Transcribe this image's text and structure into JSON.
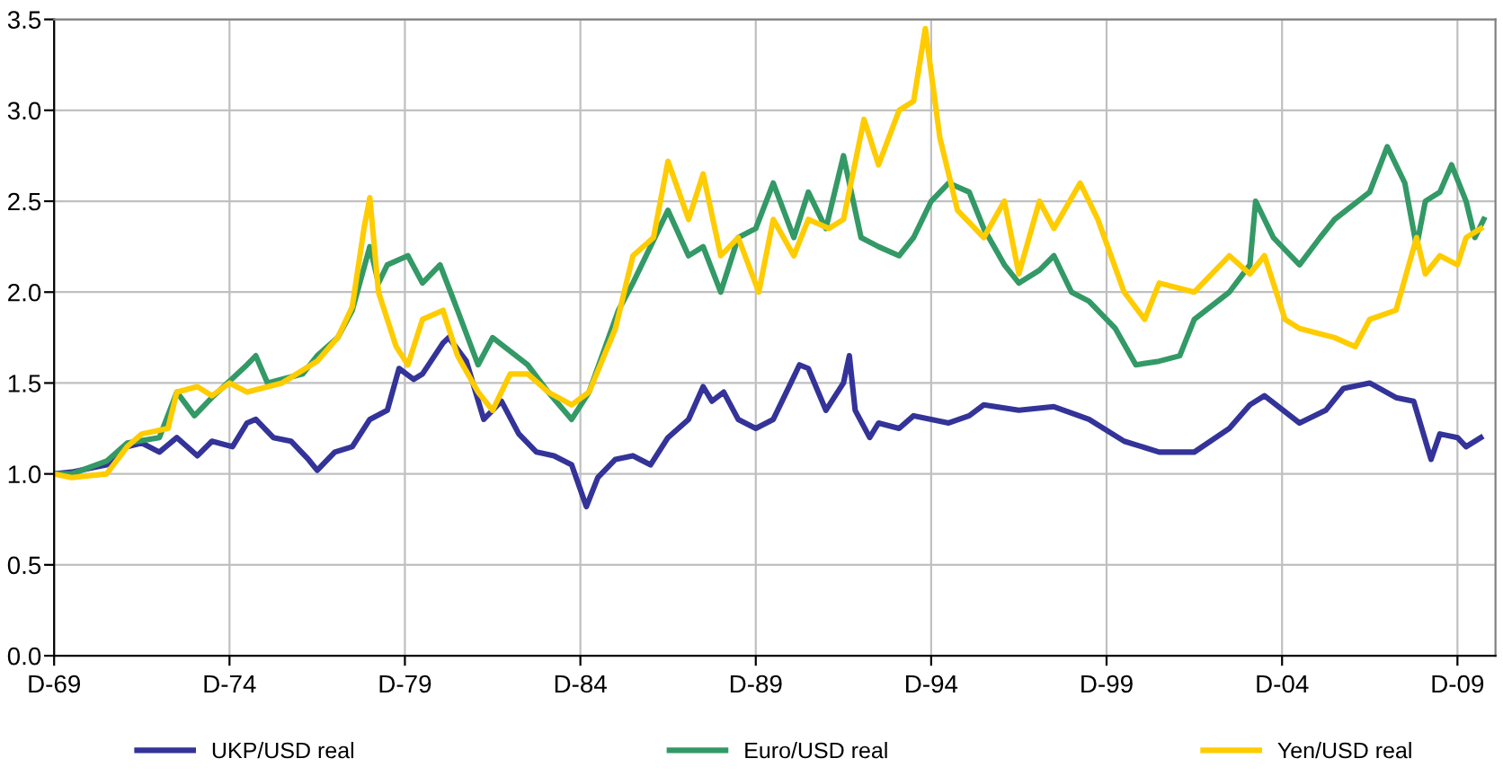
{
  "chart_data": {
    "type": "line",
    "xlim": [
      "1969-12",
      "2011-01"
    ],
    "ylim": [
      0,
      3.5
    ],
    "xticks": [
      {
        "value": "1969-12",
        "label": "D-69"
      },
      {
        "value": "1974-12",
        "label": "D-74"
      },
      {
        "value": "1979-12",
        "label": "D-79"
      },
      {
        "value": "1984-12",
        "label": "D-84"
      },
      {
        "value": "1989-12",
        "label": "D-89"
      },
      {
        "value": "1994-12",
        "label": "D-94"
      },
      {
        "value": "1999-12",
        "label": "D-99"
      },
      {
        "value": "2004-12",
        "label": "D-04"
      },
      {
        "value": "2009-12",
        "label": "D-09"
      }
    ],
    "yticks": [
      {
        "value": 0,
        "label": "0.0"
      },
      {
        "value": 0.5,
        "label": "0.5"
      },
      {
        "value": 1,
        "label": "1.0"
      },
      {
        "value": 1.5,
        "label": "1.5"
      },
      {
        "value": 2,
        "label": "2.0"
      },
      {
        "value": 2.5,
        "label": "2.5"
      },
      {
        "value": 3,
        "label": "3.0"
      },
      {
        "value": 3.5,
        "label": "3.5"
      }
    ],
    "grid": true,
    "legend": "bottom",
    "marker": "none",
    "line_style": "solid",
    "series": [
      {
        "name": "UKP/USD real",
        "color": "#333399",
        "x": [
          "1969-12",
          "1970-06",
          "1971-06",
          "1972-01",
          "1972-06",
          "1972-12",
          "1973-06",
          "1974-01",
          "1974-06",
          "1975-01",
          "1975-06",
          "1975-09",
          "1976-03",
          "1976-09",
          "1977-03",
          "1977-06",
          "1977-12",
          "1978-06",
          "1978-12",
          "1979-06",
          "1979-10",
          "1980-03",
          "1980-06",
          "1981-01",
          "1981-03",
          "1981-09",
          "1982-03",
          "1982-09",
          "1983-03",
          "1983-09",
          "1984-03",
          "1984-09",
          "1985-02",
          "1985-06",
          "1985-12",
          "1986-06",
          "1986-12",
          "1987-06",
          "1988-01",
          "1988-06",
          "1988-09",
          "1989-01",
          "1989-06",
          "1989-12",
          "1990-06",
          "1990-12",
          "1991-03",
          "1991-06",
          "1991-12",
          "1992-06",
          "1992-08",
          "1992-10",
          "1993-03",
          "1993-06",
          "1994-01",
          "1994-06",
          "1995-06",
          "1996-01",
          "1996-06",
          "1997-06",
          "1998-06",
          "1999-06",
          "2000-06",
          "2001-06",
          "2002-06",
          "2003-06",
          "2004-01",
          "2004-06",
          "2005-06",
          "2006-03",
          "2006-09",
          "2007-06",
          "2008-03",
          "2008-09",
          "2009-03",
          "2009-06",
          "2009-12",
          "2010-03",
          "2010-08"
        ],
        "values": [
          1.0,
          1.01,
          1.05,
          1.15,
          1.17,
          1.12,
          1.2,
          1.1,
          1.18,
          1.15,
          1.28,
          1.3,
          1.2,
          1.18,
          1.08,
          1.02,
          1.12,
          1.15,
          1.3,
          1.35,
          1.58,
          1.52,
          1.55,
          1.72,
          1.75,
          1.62,
          1.3,
          1.4,
          1.22,
          1.12,
          1.1,
          1.05,
          0.82,
          0.98,
          1.08,
          1.1,
          1.05,
          1.2,
          1.3,
          1.48,
          1.4,
          1.45,
          1.3,
          1.25,
          1.3,
          1.5,
          1.6,
          1.58,
          1.35,
          1.5,
          1.65,
          1.35,
          1.2,
          1.28,
          1.25,
          1.32,
          1.28,
          1.32,
          1.38,
          1.35,
          1.37,
          1.3,
          1.18,
          1.12,
          1.12,
          1.25,
          1.38,
          1.43,
          1.28,
          1.35,
          1.47,
          1.5,
          1.42,
          1.4,
          1.08,
          1.22,
          1.2,
          1.15,
          1.2
        ]
      },
      {
        "name": "Euro/USD real",
        "color": "#339966",
        "x": [
          "1969-12",
          "1970-06",
          "1971-06",
          "1972-01",
          "1972-12",
          "1973-06",
          "1973-12",
          "1974-06",
          "1975-06",
          "1975-09",
          "1976-01",
          "1977-01",
          "1977-06",
          "1978-01",
          "1978-06",
          "1978-12",
          "1979-03",
          "1979-06",
          "1980-01",
          "1980-06",
          "1980-12",
          "1981-06",
          "1982-01",
          "1982-06",
          "1983-06",
          "1984-01",
          "1984-09",
          "1985-03",
          "1986-01",
          "1986-06",
          "1987-06",
          "1988-01",
          "1988-06",
          "1988-12",
          "1989-06",
          "1989-12",
          "1990-06",
          "1991-01",
          "1991-06",
          "1991-12",
          "1992-06",
          "1992-12",
          "1993-06",
          "1994-01",
          "1994-06",
          "1994-12",
          "1995-06",
          "1996-01",
          "1996-06",
          "1997-01",
          "1997-06",
          "1998-01",
          "1998-06",
          "1998-12",
          "1999-06",
          "2000-03",
          "2000-10",
          "2001-06",
          "2002-01",
          "2002-06",
          "2003-06",
          "2004-01",
          "2004-03",
          "2004-09",
          "2005-06",
          "2006-01",
          "2006-06",
          "2007-06",
          "2007-12",
          "2008-06",
          "2008-10",
          "2009-01",
          "2009-06",
          "2009-10",
          "2010-03",
          "2010-06",
          "2010-09"
        ],
        "values": [
          1.0,
          1.0,
          1.07,
          1.17,
          1.2,
          1.45,
          1.32,
          1.42,
          1.6,
          1.65,
          1.5,
          1.55,
          1.65,
          1.75,
          1.9,
          2.25,
          2.05,
          2.15,
          2.2,
          2.05,
          2.15,
          1.9,
          1.6,
          1.75,
          1.6,
          1.45,
          1.3,
          1.45,
          1.9,
          2.05,
          2.45,
          2.2,
          2.25,
          2.0,
          2.3,
          2.35,
          2.6,
          2.3,
          2.55,
          2.35,
          2.75,
          2.3,
          2.25,
          2.2,
          2.3,
          2.5,
          2.6,
          2.55,
          2.35,
          2.15,
          2.05,
          2.12,
          2.2,
          2.0,
          1.95,
          1.8,
          1.6,
          1.62,
          1.65,
          1.85,
          2.0,
          2.15,
          2.5,
          2.3,
          2.15,
          2.3,
          2.4,
          2.55,
          2.8,
          2.6,
          2.25,
          2.5,
          2.55,
          2.7,
          2.5,
          2.3,
          2.4
        ]
      },
      {
        "name": "Yen/USD real",
        "color": "#ffcc00",
        "x": [
          "1969-12",
          "1970-06",
          "1971-06",
          "1972-01",
          "1972-06",
          "1973-03",
          "1973-06",
          "1974-01",
          "1974-06",
          "1974-12",
          "1975-06",
          "1976-06",
          "1977-06",
          "1978-01",
          "1978-06",
          "1978-10",
          "1978-12",
          "1979-03",
          "1979-09",
          "1980-01",
          "1980-06",
          "1981-01",
          "1981-06",
          "1982-01",
          "1982-06",
          "1982-12",
          "1983-06",
          "1984-01",
          "1984-09",
          "1985-03",
          "1985-12",
          "1986-06",
          "1987-01",
          "1987-06",
          "1988-01",
          "1988-06",
          "1988-12",
          "1989-06",
          "1990-01",
          "1990-06",
          "1991-01",
          "1991-06",
          "1992-01",
          "1992-06",
          "1993-01",
          "1993-06",
          "1994-01",
          "1994-06",
          "1994-10",
          "1995-03",
          "1995-09",
          "1996-06",
          "1997-01",
          "1997-06",
          "1998-01",
          "1998-06",
          "1999-03",
          "1999-09",
          "2000-06",
          "2001-01",
          "2001-06",
          "2002-06",
          "2003-06",
          "2004-01",
          "2004-06",
          "2005-01",
          "2005-06",
          "2006-06",
          "2007-01",
          "2007-06",
          "2008-03",
          "2008-10",
          "2009-01",
          "2009-06",
          "2009-12",
          "2010-03",
          "2010-08"
        ],
        "values": [
          1.0,
          0.98,
          1.0,
          1.15,
          1.22,
          1.25,
          1.45,
          1.48,
          1.43,
          1.5,
          1.45,
          1.5,
          1.62,
          1.75,
          1.92,
          2.35,
          2.52,
          2.0,
          1.7,
          1.6,
          1.85,
          1.9,
          1.65,
          1.45,
          1.35,
          1.55,
          1.55,
          1.45,
          1.38,
          1.45,
          1.8,
          2.2,
          2.3,
          2.72,
          2.4,
          2.65,
          2.2,
          2.3,
          2.0,
          2.4,
          2.2,
          2.4,
          2.35,
          2.4,
          2.95,
          2.7,
          3.0,
          3.05,
          3.45,
          2.85,
          2.45,
          2.3,
          2.5,
          2.1,
          2.5,
          2.35,
          2.6,
          2.4,
          2.0,
          1.85,
          2.05,
          2.0,
          2.2,
          2.1,
          2.2,
          1.85,
          1.8,
          1.75,
          1.7,
          1.85,
          1.9,
          2.3,
          2.1,
          2.2,
          2.15,
          2.3,
          2.35
        ]
      }
    ]
  }
}
